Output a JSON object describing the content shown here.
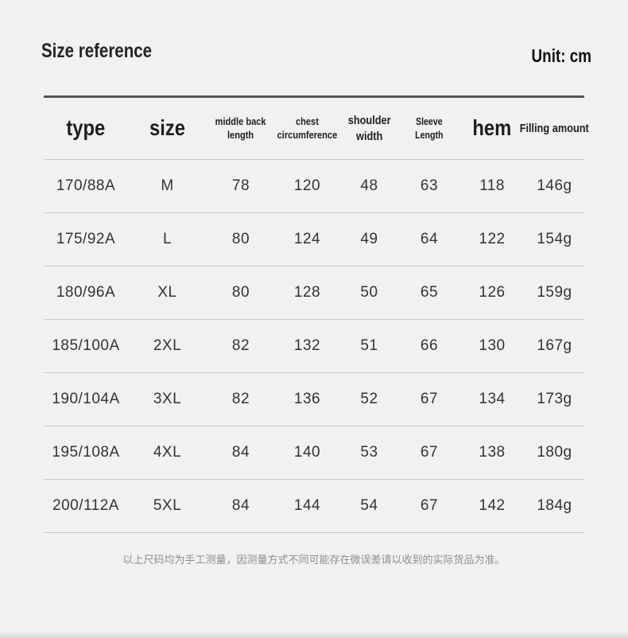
{
  "page": {
    "title": "Size reference",
    "unit_label": "Unit: cm",
    "footnote": "以上尺码均为手工测量，因测量方式不同可能存在微误差请以收到的实际货品为准。"
  },
  "colors": {
    "background": "#f1f1ef",
    "header_rule": "#565656",
    "row_separator": "#c7c7c6",
    "header_text": "#1e1e1e",
    "cell_text": "#333333",
    "footnote_text": "#8f8f8f"
  },
  "table": {
    "columns": [
      {
        "key": "type",
        "label": "type",
        "style": "xl"
      },
      {
        "key": "size",
        "label": "size",
        "style": "xl"
      },
      {
        "key": "middle-back-length",
        "label": "middle back\nlength",
        "style": "sm"
      },
      {
        "key": "chest-circumference",
        "label": "chest\ncircumference",
        "style": "sm"
      },
      {
        "key": "shoulder-width",
        "label": "shoulder\nwidth",
        "style": "md"
      },
      {
        "key": "sleeve-length",
        "label": "Sleeve\nLength",
        "style": "xs"
      },
      {
        "key": "hem",
        "label": "hem",
        "style": "xl"
      },
      {
        "key": "filling-amount",
        "label": "Filling amount",
        "style": "md-bold"
      }
    ],
    "rows": [
      [
        "170/88A",
        "M",
        "78",
        "120",
        "48",
        "63",
        "118",
        "146g"
      ],
      [
        "175/92A",
        "L",
        "80",
        "124",
        "49",
        "64",
        "122",
        "154g"
      ],
      [
        "180/96A",
        "XL",
        "80",
        "128",
        "50",
        "65",
        "126",
        "159g"
      ],
      [
        "185/100A",
        "2XL",
        "82",
        "132",
        "51",
        "66",
        "130",
        "167g"
      ],
      [
        "190/104A",
        "3XL",
        "82",
        "136",
        "52",
        "67",
        "134",
        "173g"
      ],
      [
        "195/108A",
        "4XL",
        "84",
        "140",
        "53",
        "67",
        "138",
        "180g"
      ],
      [
        "200/112A",
        "5XL",
        "84",
        "144",
        "54",
        "67",
        "142",
        "184g"
      ]
    ]
  },
  "chart_data": {
    "type": "table",
    "title": "Size reference",
    "unit": "cm",
    "columns": [
      "type",
      "size",
      "middle back length",
      "chest circumference",
      "shoulder width",
      "Sleeve Length",
      "hem",
      "Filling amount"
    ],
    "rows": [
      [
        "170/88A",
        "M",
        78,
        120,
        48,
        63,
        118,
        "146g"
      ],
      [
        "175/92A",
        "L",
        80,
        124,
        49,
        64,
        122,
        "154g"
      ],
      [
        "180/96A",
        "XL",
        80,
        128,
        50,
        65,
        126,
        "159g"
      ],
      [
        "185/100A",
        "2XL",
        82,
        132,
        51,
        66,
        130,
        "167g"
      ],
      [
        "190/104A",
        "3XL",
        82,
        136,
        52,
        67,
        134,
        "173g"
      ],
      [
        "195/108A",
        "4XL",
        84,
        140,
        53,
        67,
        138,
        "180g"
      ],
      [
        "200/112A",
        "5XL",
        84,
        144,
        54,
        67,
        142,
        "184g"
      ]
    ],
    "footnote": "以上尺码均为手工测量，因测量方式不同可能存在微误差请以收到的实际货品为准。"
  }
}
